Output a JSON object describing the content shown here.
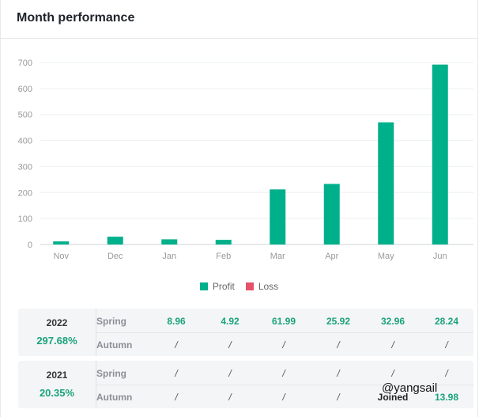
{
  "header": {
    "title": "Month performance"
  },
  "colors": {
    "profit": "#00b08a",
    "loss": "#e4526a",
    "positive_text": "#1aa37a"
  },
  "chart_data": {
    "type": "bar",
    "categories": [
      "Nov",
      "Dec",
      "Jan",
      "Feb",
      "Mar",
      "Apr",
      "May",
      "Jun"
    ],
    "series": [
      {
        "name": "Profit",
        "values": [
          12,
          30,
          20,
          18,
          212,
          233,
          470,
          692
        ]
      },
      {
        "name": "Loss",
        "values": [
          0,
          0,
          0,
          0,
          0,
          0,
          0,
          0
        ]
      }
    ],
    "yticks": [
      "0",
      "100",
      "200",
      "300",
      "400",
      "500",
      "600",
      "700"
    ],
    "ylim": [
      0,
      700
    ],
    "grid": true,
    "legend": "bottom-center"
  },
  "legend": {
    "profit_label": "Profit",
    "loss_label": "Loss"
  },
  "performance": [
    {
      "year": "2022",
      "total": "297.68%",
      "rows": [
        {
          "season": "Spring",
          "values": [
            "8.96",
            "4.92",
            "61.99",
            "25.92",
            "32.96",
            "28.24"
          ]
        },
        {
          "season": "Autumn",
          "values": [
            "/",
            "/",
            "/",
            "/",
            "/",
            "/"
          ]
        }
      ]
    },
    {
      "year": "2021",
      "total": "20.35%",
      "rows": [
        {
          "season": "Spring",
          "values": [
            "/",
            "/",
            "/",
            "/",
            "/",
            "/"
          ]
        },
        {
          "season": "Autumn",
          "values": [
            "/",
            "/",
            "/",
            "/",
            "Joined",
            "13.98"
          ]
        }
      ]
    }
  ],
  "watermark": {
    "brand": "@yangsail"
  }
}
